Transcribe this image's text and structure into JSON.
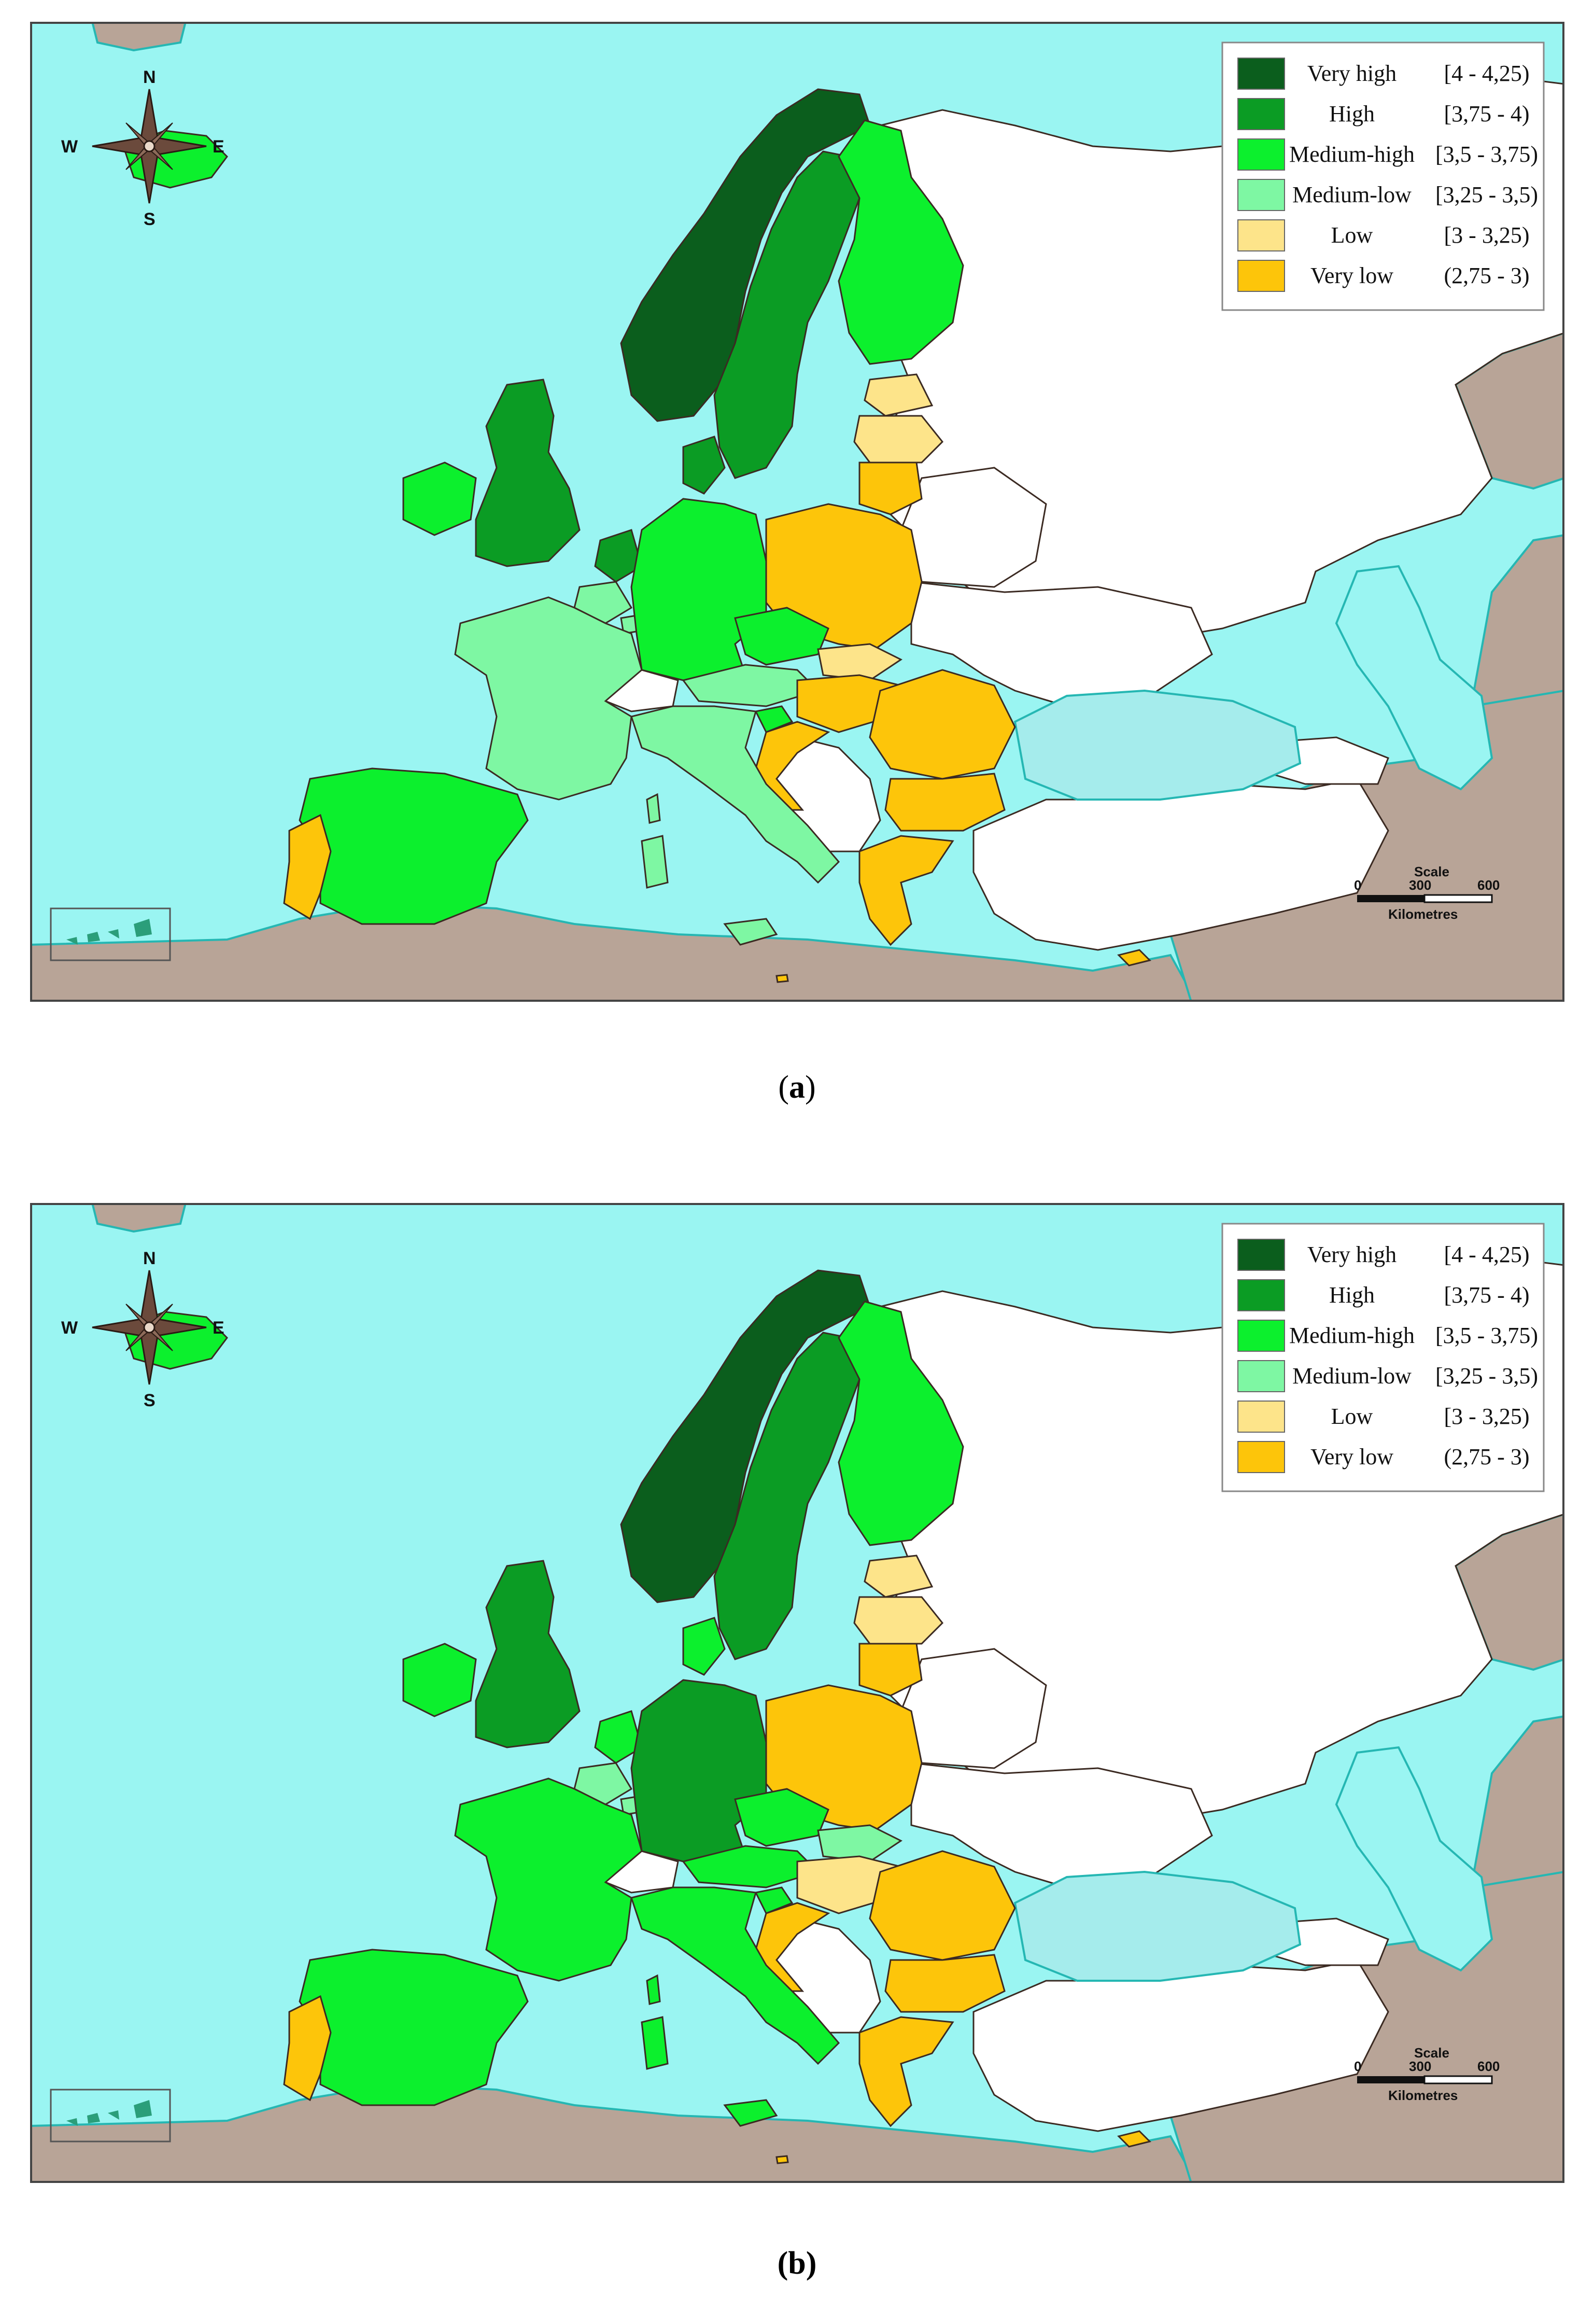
{
  "colors": {
    "sea": "#9af5f2",
    "coast": "#25b7b3",
    "nonEU_land": "#b8a497",
    "other": "#ffffff",
    "border": "#3b2a22",
    "frame": "#444444"
  },
  "legend": {
    "items": [
      {
        "label": "Very high",
        "range": "[4 - 4,25)",
        "color": "#0b5e1d"
      },
      {
        "label": "High",
        "range": "[3,75 - 4)",
        "color": "#0b9c24"
      },
      {
        "label": "Medium-high",
        "range": "[3,5 - 3,75)",
        "color": "#0cf02d"
      },
      {
        "label": "Medium-low",
        "range": "[3,25 - 3,5)",
        "color": "#7ef7a3"
      },
      {
        "label": "Low",
        "range": "[3 - 3,25)",
        "color": "#fde48a"
      },
      {
        "label": "Very low",
        "range": "(2,75 - 3)",
        "color": "#fdc50a"
      }
    ]
  },
  "compass": {
    "n": "N",
    "s": "S",
    "e": "E",
    "w": "W",
    "icon": "compass-rose-icon"
  },
  "scale": {
    "title": "Scale",
    "ticks": [
      "0",
      "300",
      "600"
    ],
    "unit": "Kilometres"
  },
  "panels": [
    {
      "caption": "a",
      "countries": {
        "norway": "very_high",
        "sweden": "high",
        "finland": "medium_high",
        "iceland": "medium_high",
        "uk": "high",
        "ireland": "medium_high",
        "denmark": "high",
        "netherlands": "high",
        "belgium": "medium_low",
        "luxembourg": "medium_low",
        "germany": "medium_high",
        "france": "medium_low",
        "spain": "medium_high",
        "portugal": "very_low",
        "italy": "medium_low",
        "austria": "medium_low",
        "czechia": "medium_high",
        "slovakia": "low",
        "hungary": "very_low",
        "slovenia": "medium_high",
        "croatia": "very_low",
        "poland": "very_low",
        "estonia": "low",
        "latvia": "low",
        "lithuania": "very_low",
        "romania": "very_low",
        "bulgaria": "very_low",
        "greece": "very_low",
        "cyprus": "very_low",
        "malta": "very_low"
      }
    },
    {
      "caption": "b",
      "countries": {
        "norway": "very_high",
        "sweden": "high",
        "finland": "medium_high",
        "iceland": "medium_high",
        "uk": "high",
        "ireland": "medium_high",
        "denmark": "medium_high",
        "netherlands": "medium_high",
        "belgium": "medium_low",
        "luxembourg": "medium_low",
        "germany": "high",
        "france": "medium_high",
        "spain": "medium_high",
        "portugal": "very_low",
        "italy": "medium_high",
        "austria": "medium_high",
        "czechia": "medium_high",
        "slovakia": "medium_low",
        "hungary": "low",
        "slovenia": "medium_high",
        "croatia": "very_low",
        "poland": "very_low",
        "estonia": "low",
        "latvia": "low",
        "lithuania": "very_low",
        "romania": "very_low",
        "bulgaria": "very_low",
        "greece": "very_low",
        "cyprus": "very_low",
        "malta": "very_low"
      }
    }
  ]
}
